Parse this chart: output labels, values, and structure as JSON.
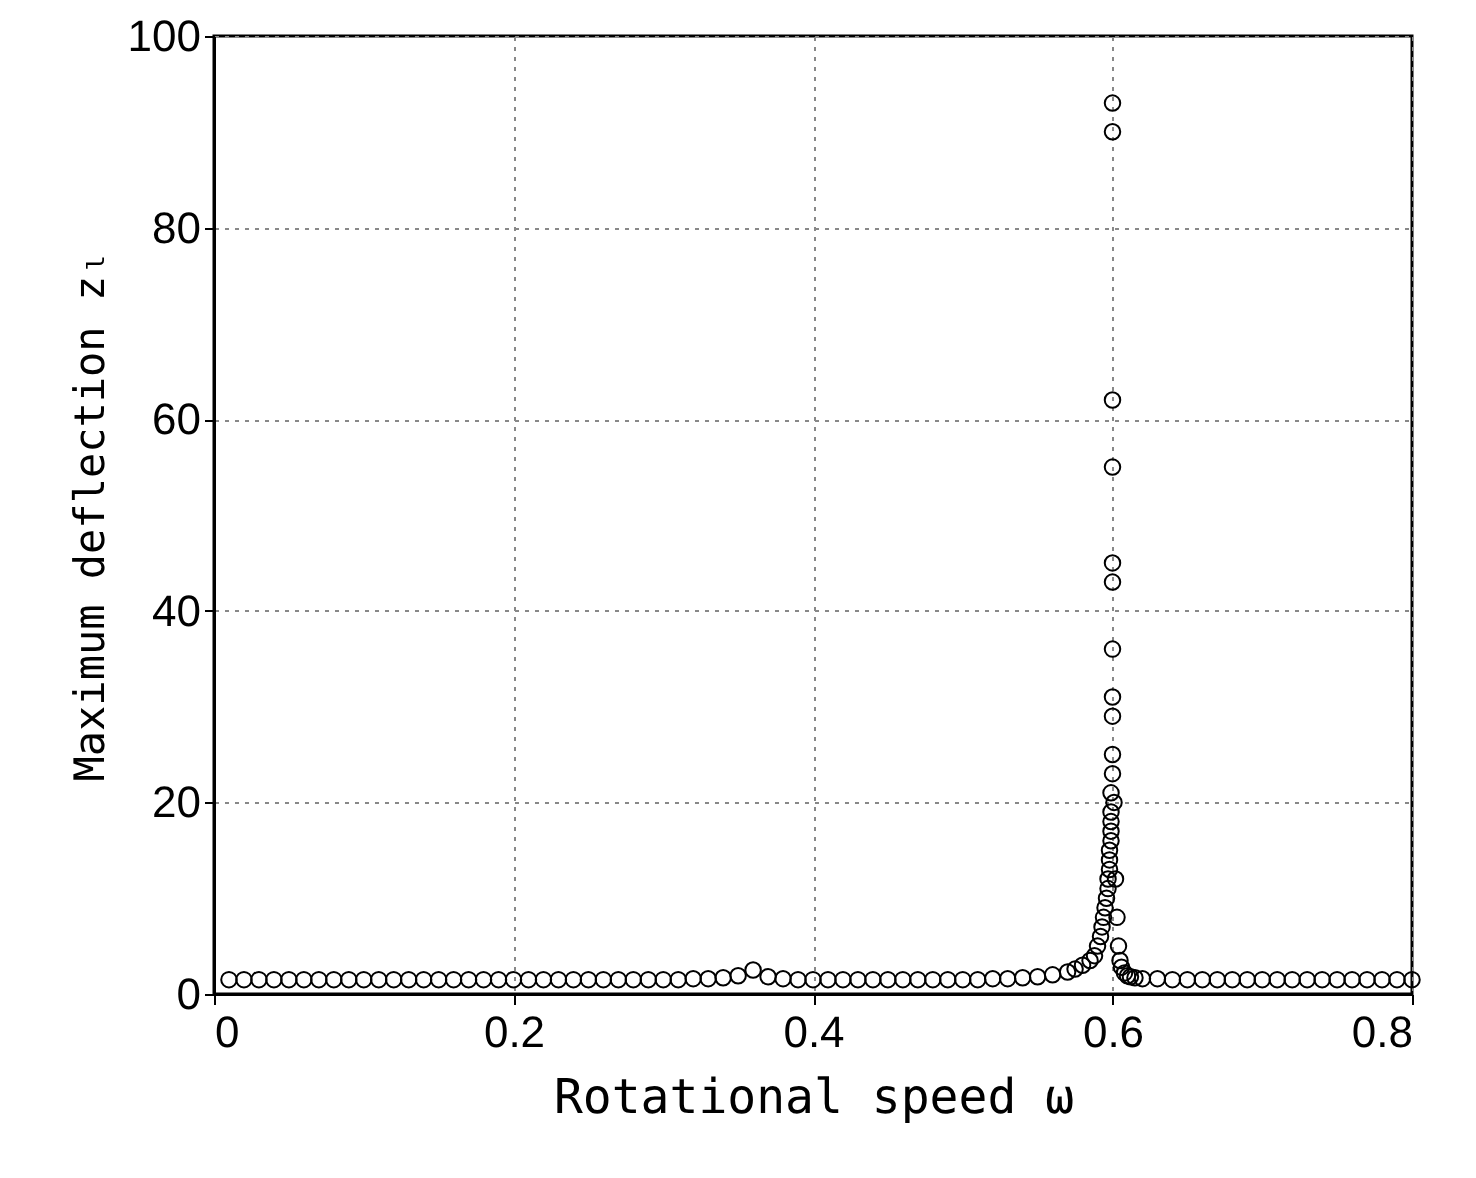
{
  "chart_data": {
    "type": "scatter",
    "xlabel": "Rotational speed ω",
    "ylabel": "Maximum deflection zₗ",
    "xlim": [
      0,
      0.8
    ],
    "ylim": [
      0,
      100
    ],
    "xticks": [
      0,
      0.2,
      0.4,
      0.6,
      0.8
    ],
    "yticks": [
      0,
      20,
      40,
      60,
      80,
      100
    ],
    "grid": true,
    "marker": "circle",
    "series": [
      {
        "color": "#000000",
        "x": [
          0.01,
          0.02,
          0.03,
          0.04,
          0.05,
          0.06,
          0.07,
          0.08,
          0.09,
          0.1,
          0.11,
          0.12,
          0.13,
          0.14,
          0.15,
          0.16,
          0.17,
          0.18,
          0.19,
          0.2,
          0.21,
          0.22,
          0.23,
          0.24,
          0.25,
          0.26,
          0.27,
          0.28,
          0.29,
          0.3,
          0.31,
          0.32,
          0.33,
          0.34,
          0.35,
          0.36,
          0.37,
          0.38,
          0.39,
          0.4,
          0.41,
          0.42,
          0.43,
          0.44,
          0.45,
          0.46,
          0.47,
          0.48,
          0.49,
          0.5,
          0.51,
          0.52,
          0.53,
          0.54,
          0.55,
          0.56,
          0.57,
          0.575,
          0.58,
          0.585,
          0.588,
          0.59,
          0.592,
          0.593,
          0.594,
          0.595,
          0.596,
          0.597,
          0.597,
          0.598,
          0.598,
          0.598,
          0.599,
          0.599,
          0.599,
          0.599,
          0.599,
          0.6,
          0.6,
          0.6,
          0.6,
          0.6,
          0.6,
          0.6,
          0.6,
          0.6,
          0.6,
          0.6,
          0.601,
          0.602,
          0.603,
          0.604,
          0.605,
          0.606,
          0.608,
          0.61,
          0.612,
          0.615,
          0.62,
          0.63,
          0.64,
          0.65,
          0.66,
          0.67,
          0.68,
          0.69,
          0.7,
          0.71,
          0.72,
          0.73,
          0.74,
          0.75,
          0.76,
          0.77,
          0.78,
          0.79,
          0.8
        ],
        "values": [
          1.5,
          1.5,
          1.5,
          1.5,
          1.5,
          1.5,
          1.5,
          1.5,
          1.5,
          1.5,
          1.5,
          1.5,
          1.5,
          1.5,
          1.5,
          1.5,
          1.5,
          1.5,
          1.5,
          1.5,
          1.5,
          1.5,
          1.5,
          1.5,
          1.5,
          1.5,
          1.5,
          1.5,
          1.5,
          1.5,
          1.5,
          1.6,
          1.6,
          1.7,
          1.9,
          2.5,
          1.8,
          1.6,
          1.5,
          1.5,
          1.5,
          1.5,
          1.5,
          1.5,
          1.5,
          1.5,
          1.5,
          1.5,
          1.5,
          1.5,
          1.5,
          1.6,
          1.6,
          1.7,
          1.8,
          2,
          2.3,
          2.6,
          3,
          3.5,
          4,
          5,
          6,
          7,
          8,
          9,
          10,
          11,
          12,
          13,
          14,
          15,
          16,
          17,
          18,
          19,
          21,
          23,
          25,
          29,
          31,
          36,
          43,
          45,
          55,
          62,
          90,
          93,
          20,
          12,
          8,
          5,
          3.5,
          2.8,
          2.2,
          1.9,
          1.8,
          1.7,
          1.6,
          1.6,
          1.5,
          1.5,
          1.5,
          1.5,
          1.5,
          1.5,
          1.5,
          1.5,
          1.5,
          1.5,
          1.5,
          1.5,
          1.5,
          1.5,
          1.5,
          1.5,
          1.5
        ]
      }
    ]
  }
}
